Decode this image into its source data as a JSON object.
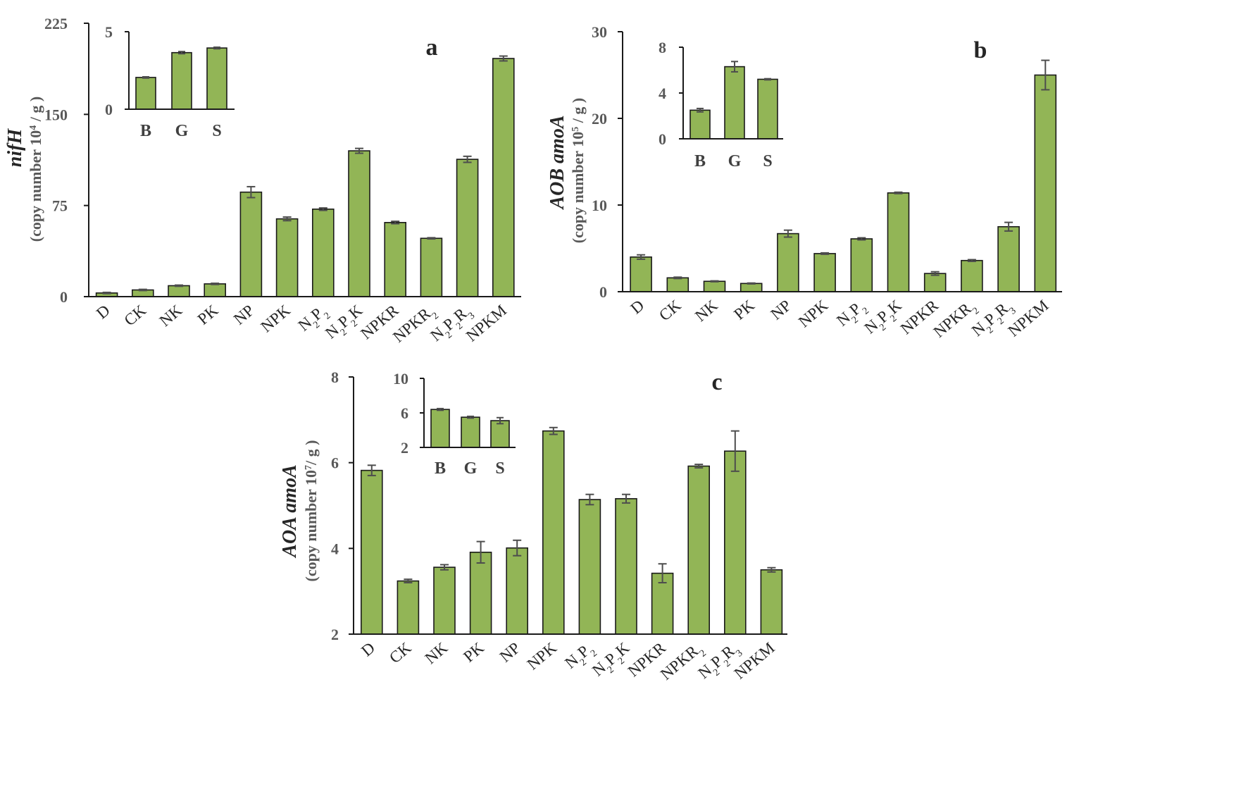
{
  "chart_data": [
    {
      "type": "bar",
      "panel_label": "a",
      "ylabel_gene": "nifH",
      "ylabel_unit": "(copy number 10⁴ / g )",
      "ylim": [
        0,
        225
      ],
      "yticks": [
        "0",
        "75",
        "150",
        "225"
      ],
      "categories": [
        "D",
        "CK",
        "NK",
        "PK",
        "NP",
        "NPK",
        "N₂P₂",
        "N₂P₂K",
        "NPKR",
        "NPKR₂",
        "N₂P₂R₃",
        "NPKM"
      ],
      "values": [
        3,
        5.5,
        9,
        10.5,
        86,
        64,
        72,
        120,
        61,
        48,
        113,
        196
      ],
      "errors": [
        0.5,
        0.5,
        0.5,
        0.5,
        4.5,
        1.5,
        1,
        2,
        1,
        0.5,
        2.5,
        2
      ],
      "inset": {
        "ylim": [
          0,
          5
        ],
        "yticks": [
          "0",
          "5"
        ],
        "categories": [
          "B",
          "G",
          "S"
        ],
        "values": [
          2.05,
          3.65,
          3.95
        ],
        "errors": [
          0.04,
          0.07,
          0.05
        ]
      }
    },
    {
      "type": "bar",
      "panel_label": "b",
      "ylabel_gene": "AOB amoA",
      "ylabel_unit": "(copy number 10⁵ / g )",
      "ylim": [
        0,
        30
      ],
      "yticks": [
        "0",
        "10",
        "20",
        "30"
      ],
      "categories": [
        "D",
        "CK",
        "NK",
        "PK",
        "NP",
        "NPK",
        "N₂P₂",
        "N₂P₂K",
        "NPKR",
        "NPKR₂",
        "N₂P₂R₃",
        "NPKM"
      ],
      "values": [
        4.0,
        1.6,
        1.2,
        0.95,
        6.7,
        4.4,
        6.1,
        11.4,
        2.1,
        3.6,
        7.5,
        25.0
      ],
      "errors": [
        0.25,
        0.08,
        0.05,
        0.05,
        0.4,
        0.08,
        0.12,
        0.08,
        0.2,
        0.1,
        0.5,
        1.7
      ],
      "inset": {
        "ylim": [
          0,
          8
        ],
        "yticks": [
          "0",
          "4",
          "8"
        ],
        "categories": [
          "B",
          "G",
          "S"
        ],
        "values": [
          2.5,
          6.3,
          5.2
        ],
        "errors": [
          0.15,
          0.45,
          0.05
        ]
      }
    },
    {
      "type": "bar",
      "panel_label": "c",
      "ylabel_gene": "AOA amoA",
      "ylabel_unit": "(copy number 10⁷/ g )",
      "ylim": [
        2,
        8
      ],
      "yticks": [
        "2",
        "4",
        "6",
        "8"
      ],
      "categories": [
        "D",
        "CK",
        "NK",
        "PK",
        "NP",
        "NPK",
        "N₂P₂",
        "N₂P₂K",
        "NPKR",
        "NPKR₂",
        "N₂P₂R₃",
        "NPKM"
      ],
      "values": [
        5.82,
        3.24,
        3.56,
        3.91,
        4.01,
        6.74,
        5.14,
        5.16,
        3.42,
        5.92,
        6.27,
        3.5
      ],
      "errors": [
        0.12,
        0.04,
        0.06,
        0.25,
        0.18,
        0.08,
        0.12,
        0.1,
        0.22,
        0.04,
        0.47,
        0.05
      ],
      "inset": {
        "ylim": [
          2,
          10
        ],
        "yticks": [
          "2",
          "6",
          "10"
        ],
        "categories": [
          "B",
          "G",
          "S"
        ],
        "values": [
          6.4,
          5.5,
          5.1
        ],
        "errors": [
          0.1,
          0.1,
          0.35
        ]
      }
    }
  ]
}
